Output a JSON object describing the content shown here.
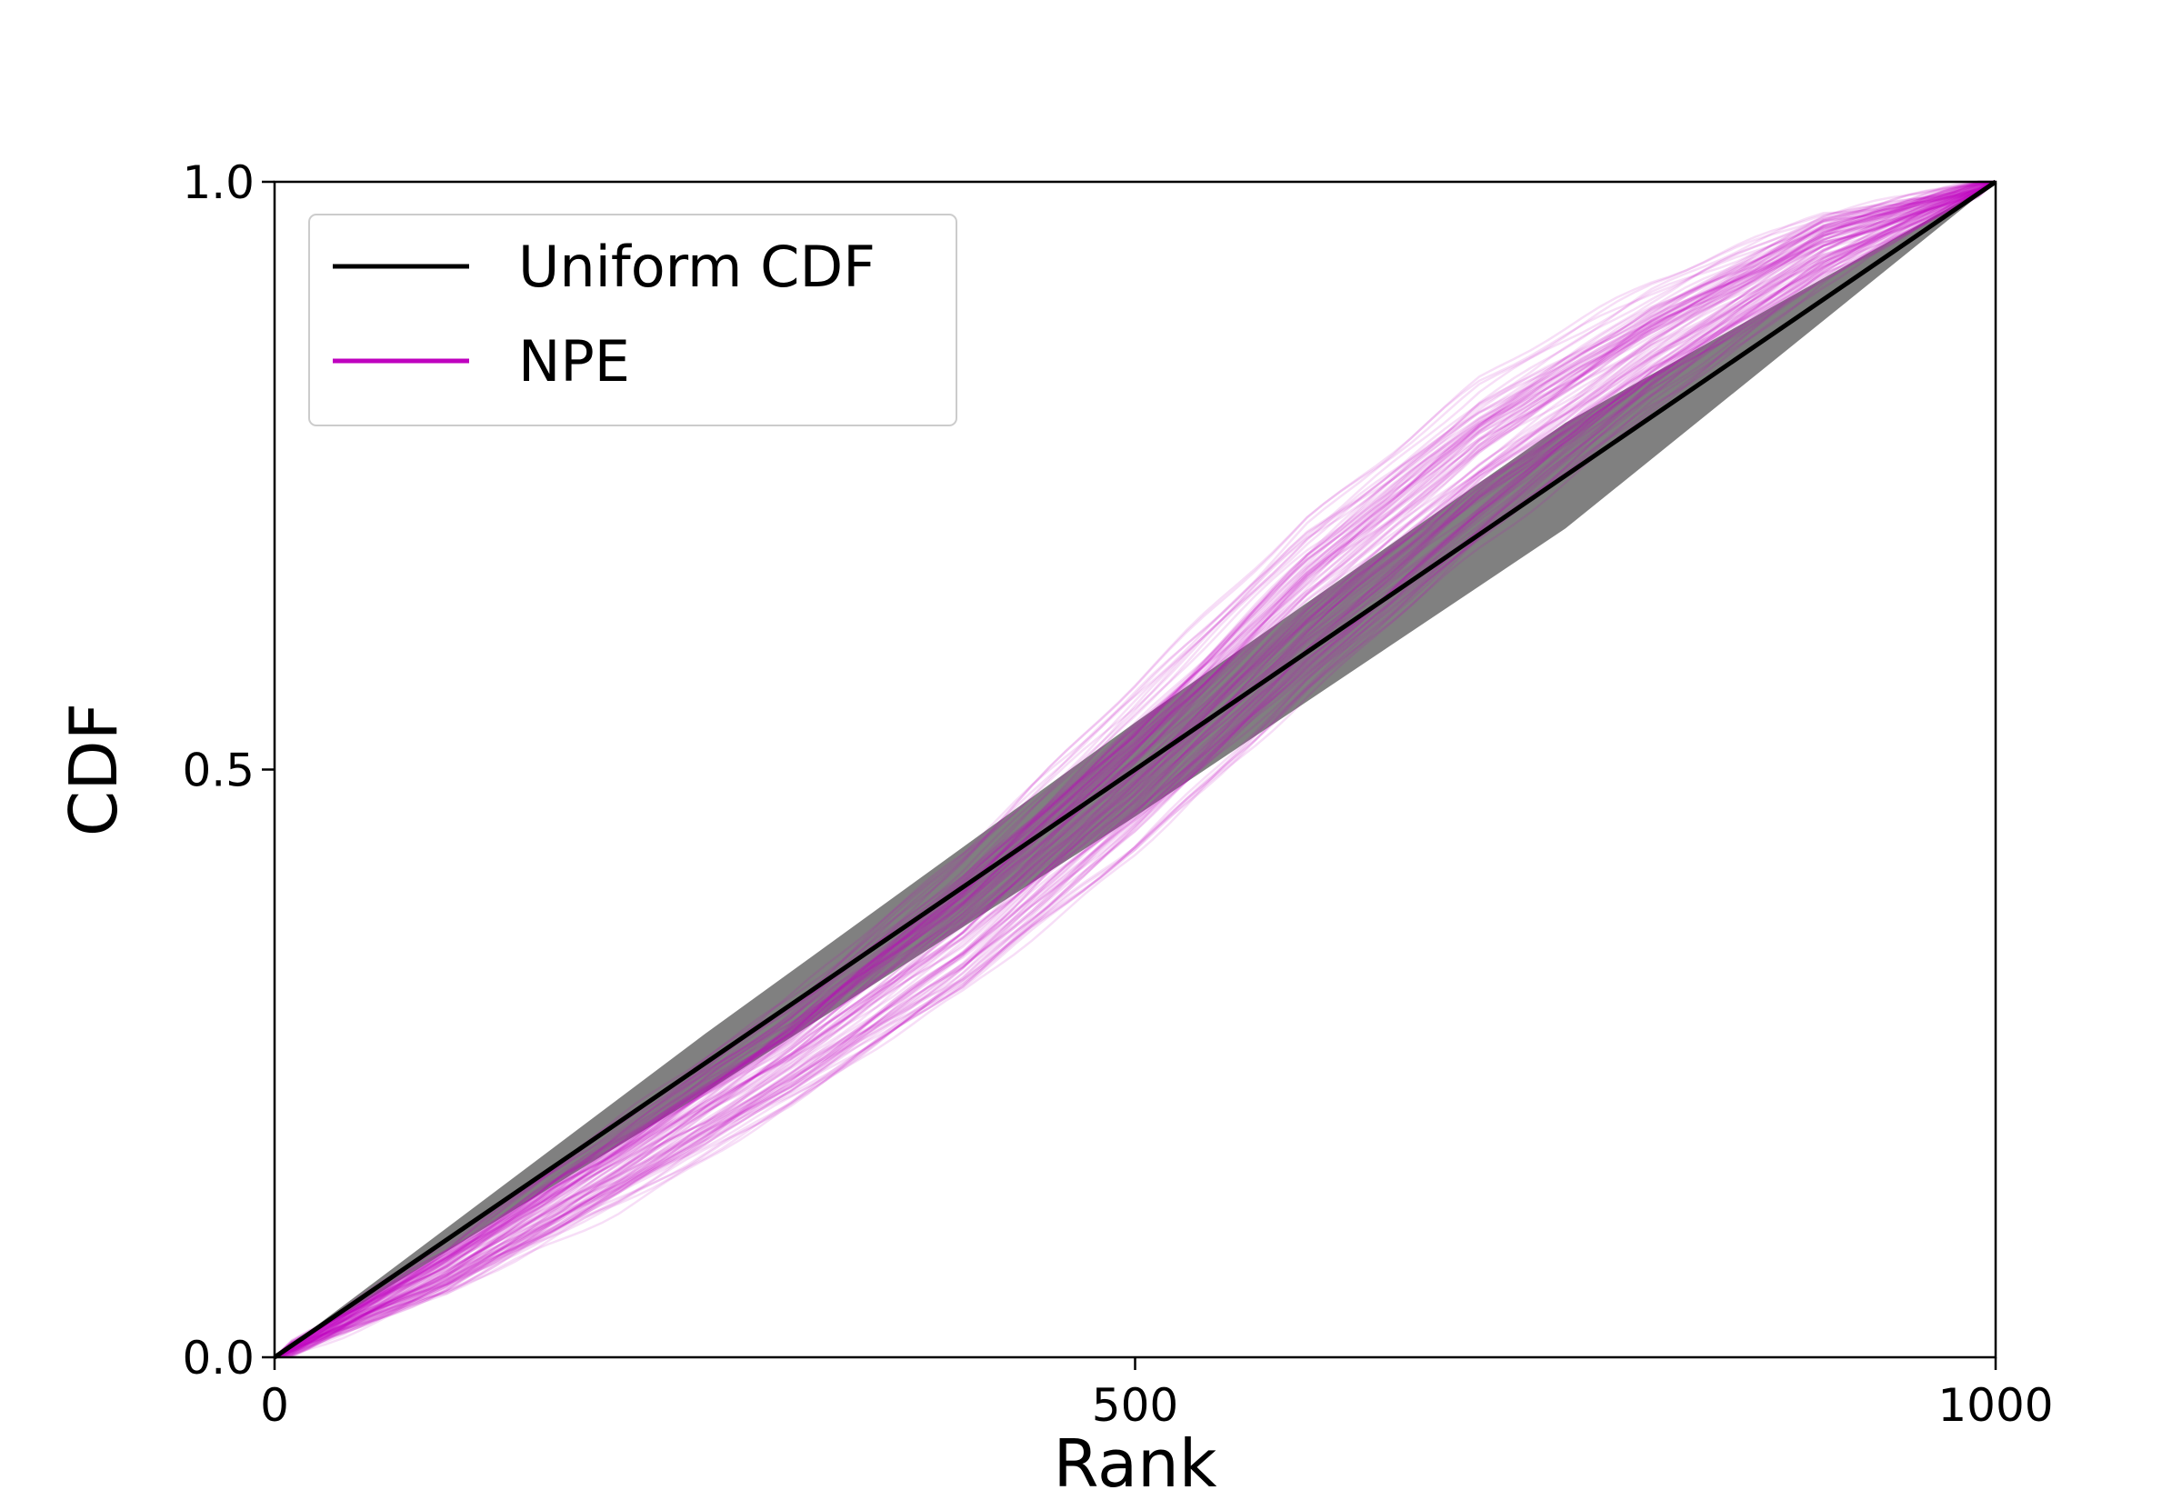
{
  "chart_data": {
    "type": "line",
    "title": "",
    "xlabel": "Rank",
    "ylabel": "CDF",
    "xlim": [
      0,
      1000
    ],
    "ylim": [
      0.0,
      1.0
    ],
    "x_ticks": [
      "0",
      "500",
      "1000"
    ],
    "y_ticks": [
      "0.0",
      "0.5",
      "1.0"
    ],
    "grid": false,
    "legend_position": "upper-left",
    "legend": [
      {
        "label": "Uniform CDF",
        "color": "#000000"
      },
      {
        "label": "NPE",
        "color": "#bf00bf"
      }
    ],
    "confidence_band": {
      "color": "#808080",
      "x": [
        0,
        250,
        500,
        750,
        1000
      ],
      "lower": [
        0.0,
        0.225,
        0.46,
        0.705,
        1.0
      ],
      "upper": [
        0.0,
        0.275,
        0.54,
        0.795,
        1.0
      ]
    },
    "series": [
      {
        "name": "Uniform CDF",
        "color": "#000000",
        "x": [
          0,
          1000
        ],
        "y": [
          0.0,
          1.0
        ]
      },
      {
        "name": "NPE",
        "color": "#bf00bf",
        "x": [
          0,
          100,
          200,
          300,
          400,
          500,
          600,
          700,
          800,
          900,
          1000
        ],
        "y": [
          0.0,
          0.075,
          0.165,
          0.26,
          0.37,
          0.5,
          0.64,
          0.76,
          0.86,
          0.945,
          1.0
        ],
        "spread": [
          0.0,
          0.02,
          0.035,
          0.045,
          0.06,
          0.07,
          0.075,
          0.07,
          0.05,
          0.03,
          0.0
        ],
        "draws": 100
      }
    ]
  }
}
